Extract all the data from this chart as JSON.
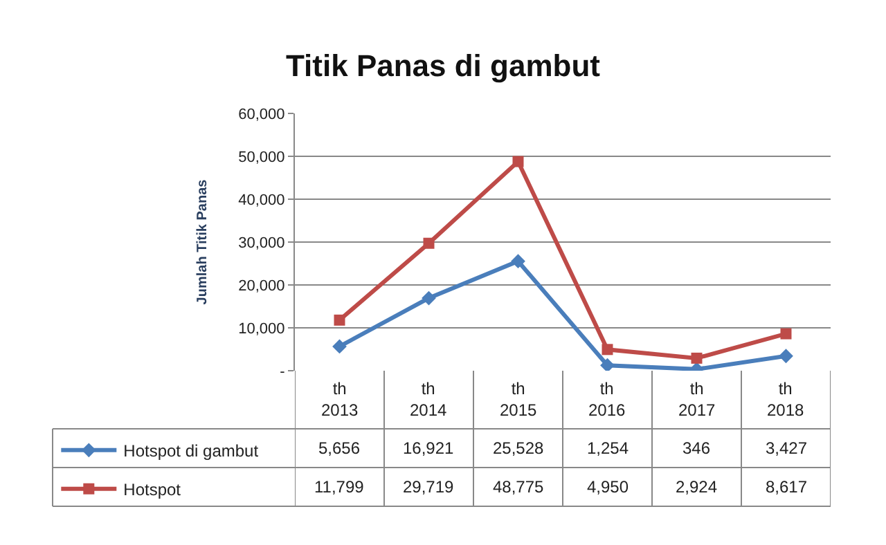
{
  "chart_data": {
    "type": "line",
    "title": "Titik Panas di gambut",
    "ylabel": "Jumlah Titik Panas",
    "categories": [
      "th\n2013",
      "th\n2014",
      "th\n2015",
      "th\n2016",
      "th\n2017",
      "th\n2018"
    ],
    "series": [
      {
        "name": "Hotspot di gambut",
        "color": "#4a7ebb",
        "marker": "diamond",
        "values": [
          5656,
          16921,
          25528,
          1254,
          346,
          3427
        ],
        "value_labels": [
          "5,656",
          "16,921",
          "25,528",
          "1,254",
          "346",
          "3,427"
        ]
      },
      {
        "name": "Hotspot",
        "color": "#be4b48",
        "marker": "square",
        "values": [
          11799,
          29719,
          48775,
          4950,
          2924,
          8617
        ],
        "value_labels": [
          "11,799",
          "29,719",
          "48,775",
          "4,950",
          "2,924",
          "8,617"
        ]
      }
    ],
    "ylim": [
      0,
      60000
    ],
    "yticks": [
      {
        "value": 0,
        "label": "-"
      },
      {
        "value": 10000,
        "label": "10,000"
      },
      {
        "value": 20000,
        "label": "20,000"
      },
      {
        "value": 30000,
        "label": "30,000"
      },
      {
        "value": 40000,
        "label": "40,000"
      },
      {
        "value": 50000,
        "label": "50,000"
      },
      {
        "value": 60000,
        "label": "60,000"
      }
    ],
    "grid": "y",
    "legend": "bottom left"
  }
}
